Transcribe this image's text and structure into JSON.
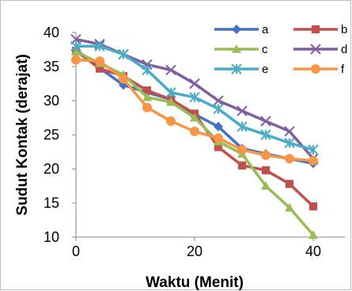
{
  "chart_data": {
    "type": "line",
    "xlabel": "Waktu (Menit)",
    "ylabel": "Sudut Kontak (derajat)",
    "xlim": [
      0,
      40
    ],
    "ylim": [
      10,
      40
    ],
    "xticks": [
      0,
      20,
      40
    ],
    "yticks": [
      10,
      15,
      20,
      25,
      30,
      35,
      40
    ],
    "grid": false,
    "legend_position": "top-right",
    "series": [
      {
        "name": "a",
        "color": "#4472c4",
        "marker": "diamond",
        "x": [
          0,
          4,
          8,
          12,
          16,
          20,
          24,
          28,
          32,
          36,
          40
        ],
        "y": [
          37.5,
          34.8,
          32.3,
          31.2,
          30.2,
          28.0,
          26.2,
          23.0,
          22.2,
          21.5,
          20.8
        ]
      },
      {
        "name": "b",
        "color": "#c0504d",
        "marker": "square",
        "x": [
          0,
          4,
          8,
          12,
          16,
          20,
          24,
          28,
          32,
          36,
          40
        ],
        "y": [
          37.3,
          34.7,
          33.6,
          31.5,
          30.2,
          28.1,
          23.2,
          20.5,
          19.8,
          17.8,
          14.5
        ]
      },
      {
        "name": "c",
        "color": "#9bbb59",
        "marker": "triangle",
        "x": [
          0,
          4,
          8,
          12,
          16,
          20,
          24,
          28,
          32,
          36,
          40
        ],
        "y": [
          37.2,
          35.5,
          33.8,
          30.5,
          29.8,
          27.5,
          24.0,
          22.2,
          17.5,
          14.3,
          10.3
        ]
      },
      {
        "name": "d",
        "color": "#7f5f9f",
        "marker": "x",
        "x": [
          0,
          4,
          8,
          12,
          16,
          20,
          24,
          28,
          32,
          36,
          40
        ],
        "y": [
          39.0,
          38.3,
          36.8,
          35.3,
          34.5,
          32.5,
          30.0,
          28.5,
          27.0,
          25.5,
          21.5
        ]
      },
      {
        "name": "e",
        "color": "#4bacc6",
        "marker": "star",
        "x": [
          0,
          4,
          8,
          12,
          16,
          20,
          24,
          28,
          32,
          36,
          40
        ],
        "y": [
          38.0,
          38.0,
          36.8,
          34.5,
          31.2,
          30.5,
          28.8,
          26.2,
          25.0,
          23.8,
          22.8
        ]
      },
      {
        "name": "f",
        "color": "#f79646",
        "marker": "circle",
        "x": [
          0,
          4,
          8,
          12,
          16,
          20,
          24,
          28,
          32,
          36,
          40
        ],
        "y": [
          36.0,
          35.8,
          33.2,
          29.0,
          27.0,
          25.5,
          24.5,
          22.8,
          22.0,
          21.5,
          21.2
        ]
      }
    ]
  }
}
